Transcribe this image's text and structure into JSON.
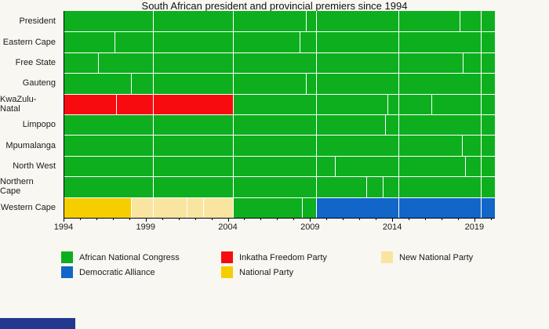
{
  "title": "South African president and provincial premiers since 1994",
  "colors": {
    "background": "#f8f7f2",
    "axis": "#000000",
    "divider": "#ffffff",
    "text": "#1a1a1a",
    "footer_fragment": "#24388f",
    "anc": "#0daf1e",
    "da": "#1166c8",
    "ifp": "#f70b0f",
    "np": "#f6ce00",
    "nnp": "#f9e4a0"
  },
  "chart_data": {
    "type": "bar",
    "subtype": "horizontal-timeline",
    "title": "South African president and provincial premiers since 1994",
    "x_range": [
      1994,
      2020.2
    ],
    "x_major_ticks": [
      1994,
      1999,
      2004,
      2009,
      2014,
      2019
    ],
    "x_minor_ticks": {
      "start": 1995,
      "end": 2020,
      "step": 1
    },
    "grid": false,
    "legend_position": "bottom",
    "rows": [
      {
        "label": "President",
        "segments": [
          {
            "start": 1994.0,
            "end": 1999.45,
            "party": "anc"
          },
          {
            "start": 1999.45,
            "end": 2004.3,
            "party": "anc"
          },
          {
            "start": 2004.3,
            "end": 2008.75,
            "party": "anc"
          },
          {
            "start": 2008.75,
            "end": 2009.35,
            "party": "anc"
          },
          {
            "start": 2009.35,
            "end": 2014.4,
            "party": "anc"
          },
          {
            "start": 2014.4,
            "end": 2018.1,
            "party": "anc"
          },
          {
            "start": 2018.1,
            "end": 2019.4,
            "party": "anc"
          },
          {
            "start": 2019.4,
            "end": 2020.2,
            "party": "anc"
          }
        ]
      },
      {
        "label": "Eastern Cape",
        "segments": [
          {
            "start": 1994.0,
            "end": 1997.1,
            "party": "anc"
          },
          {
            "start": 1997.1,
            "end": 1999.45,
            "party": "anc"
          },
          {
            "start": 1999.45,
            "end": 2004.3,
            "party": "anc"
          },
          {
            "start": 2004.3,
            "end": 2008.35,
            "party": "anc"
          },
          {
            "start": 2008.35,
            "end": 2009.35,
            "party": "anc"
          },
          {
            "start": 2009.35,
            "end": 2014.4,
            "party": "anc"
          },
          {
            "start": 2014.4,
            "end": 2019.4,
            "party": "anc"
          },
          {
            "start": 2019.4,
            "end": 2020.2,
            "party": "anc"
          }
        ]
      },
      {
        "label": "Free State",
        "segments": [
          {
            "start": 1994.0,
            "end": 1996.1,
            "party": "anc"
          },
          {
            "start": 1996.1,
            "end": 1999.45,
            "party": "anc"
          },
          {
            "start": 1999.45,
            "end": 2004.3,
            "party": "anc"
          },
          {
            "start": 2004.3,
            "end": 2009.35,
            "party": "anc"
          },
          {
            "start": 2009.35,
            "end": 2014.4,
            "party": "anc"
          },
          {
            "start": 2014.4,
            "end": 2018.3,
            "party": "anc"
          },
          {
            "start": 2018.3,
            "end": 2019.4,
            "party": "anc"
          },
          {
            "start": 2019.4,
            "end": 2020.2,
            "party": "anc"
          }
        ]
      },
      {
        "label": "Gauteng",
        "segments": [
          {
            "start": 1994.0,
            "end": 1998.1,
            "party": "anc"
          },
          {
            "start": 1998.1,
            "end": 1999.45,
            "party": "anc"
          },
          {
            "start": 1999.45,
            "end": 2004.3,
            "party": "anc"
          },
          {
            "start": 2004.3,
            "end": 2008.75,
            "party": "anc"
          },
          {
            "start": 2008.75,
            "end": 2009.35,
            "party": "anc"
          },
          {
            "start": 2009.35,
            "end": 2014.4,
            "party": "anc"
          },
          {
            "start": 2014.4,
            "end": 2019.4,
            "party": "anc"
          },
          {
            "start": 2019.4,
            "end": 2020.2,
            "party": "anc"
          }
        ]
      },
      {
        "label": "KwaZulu-Natal",
        "segments": [
          {
            "start": 1994.0,
            "end": 1997.2,
            "party": "ifp"
          },
          {
            "start": 1997.2,
            "end": 1999.45,
            "party": "ifp"
          },
          {
            "start": 1999.45,
            "end": 2004.3,
            "party": "ifp"
          },
          {
            "start": 2004.3,
            "end": 2009.35,
            "party": "anc"
          },
          {
            "start": 2009.35,
            "end": 2013.7,
            "party": "anc"
          },
          {
            "start": 2013.7,
            "end": 2014.4,
            "party": "anc"
          },
          {
            "start": 2014.4,
            "end": 2016.4,
            "party": "anc"
          },
          {
            "start": 2016.4,
            "end": 2019.4,
            "party": "anc"
          },
          {
            "start": 2019.4,
            "end": 2020.2,
            "party": "anc"
          }
        ]
      },
      {
        "label": "Limpopo",
        "segments": [
          {
            "start": 1994.0,
            "end": 1999.45,
            "party": "anc"
          },
          {
            "start": 1999.45,
            "end": 2004.3,
            "party": "anc"
          },
          {
            "start": 2004.3,
            "end": 2009.35,
            "party": "anc"
          },
          {
            "start": 2009.35,
            "end": 2013.55,
            "party": "anc"
          },
          {
            "start": 2013.55,
            "end": 2014.4,
            "party": "anc"
          },
          {
            "start": 2014.4,
            "end": 2019.4,
            "party": "anc"
          },
          {
            "start": 2019.4,
            "end": 2020.2,
            "party": "anc"
          }
        ]
      },
      {
        "label": "Mpumalanga",
        "segments": [
          {
            "start": 1994.0,
            "end": 1999.45,
            "party": "anc"
          },
          {
            "start": 1999.45,
            "end": 2004.3,
            "party": "anc"
          },
          {
            "start": 2004.3,
            "end": 2009.35,
            "party": "anc"
          },
          {
            "start": 2009.35,
            "end": 2014.4,
            "party": "anc"
          },
          {
            "start": 2014.4,
            "end": 2018.25,
            "party": "anc"
          },
          {
            "start": 2018.25,
            "end": 2019.4,
            "party": "anc"
          },
          {
            "start": 2019.4,
            "end": 2020.2,
            "party": "anc"
          }
        ]
      },
      {
        "label": "North West",
        "segments": [
          {
            "start": 1994.0,
            "end": 1999.45,
            "party": "anc"
          },
          {
            "start": 1999.45,
            "end": 2004.3,
            "party": "anc"
          },
          {
            "start": 2004.3,
            "end": 2009.35,
            "party": "anc"
          },
          {
            "start": 2009.35,
            "end": 2010.5,
            "party": "anc"
          },
          {
            "start": 2010.5,
            "end": 2014.4,
            "party": "anc"
          },
          {
            "start": 2014.4,
            "end": 2018.45,
            "party": "anc"
          },
          {
            "start": 2018.45,
            "end": 2019.4,
            "party": "anc"
          },
          {
            "start": 2019.4,
            "end": 2020.2,
            "party": "anc"
          }
        ]
      },
      {
        "label": "Northern Cape",
        "segments": [
          {
            "start": 1994.0,
            "end": 1999.45,
            "party": "anc"
          },
          {
            "start": 1999.45,
            "end": 2004.3,
            "party": "anc"
          },
          {
            "start": 2004.3,
            "end": 2009.35,
            "party": "anc"
          },
          {
            "start": 2009.35,
            "end": 2012.4,
            "party": "anc"
          },
          {
            "start": 2012.4,
            "end": 2013.4,
            "party": "anc"
          },
          {
            "start": 2013.4,
            "end": 2014.4,
            "party": "anc"
          },
          {
            "start": 2014.4,
            "end": 2019.4,
            "party": "anc"
          },
          {
            "start": 2019.4,
            "end": 2020.2,
            "party": "anc"
          }
        ]
      },
      {
        "label": "Western Cape",
        "segments": [
          {
            "start": 1994.0,
            "end": 1998.1,
            "party": "np"
          },
          {
            "start": 1998.1,
            "end": 1999.45,
            "party": "nnp"
          },
          {
            "start": 1999.45,
            "end": 2001.5,
            "party": "nnp"
          },
          {
            "start": 2001.5,
            "end": 2002.5,
            "party": "nnp"
          },
          {
            "start": 2002.5,
            "end": 2004.3,
            "party": "nnp"
          },
          {
            "start": 2004.3,
            "end": 2008.5,
            "party": "anc"
          },
          {
            "start": 2008.5,
            "end": 2009.35,
            "party": "anc"
          },
          {
            "start": 2009.35,
            "end": 2014.4,
            "party": "da"
          },
          {
            "start": 2014.4,
            "end": 2019.4,
            "party": "da"
          },
          {
            "start": 2019.4,
            "end": 2020.2,
            "party": "da"
          }
        ]
      },
      {
        "label": "__end__",
        "segments": []
      }
    ],
    "legend": {
      "columns": [
        [
          {
            "label": "African National Congress",
            "party": "anc"
          },
          {
            "label": "Democratic Alliance",
            "party": "da"
          }
        ],
        [
          {
            "label": "Inkatha Freedom Party",
            "party": "ifp"
          },
          {
            "label": "National Party",
            "party": "np"
          }
        ],
        [
          {
            "label": "New National Party",
            "party": "nnp"
          }
        ]
      ]
    }
  }
}
